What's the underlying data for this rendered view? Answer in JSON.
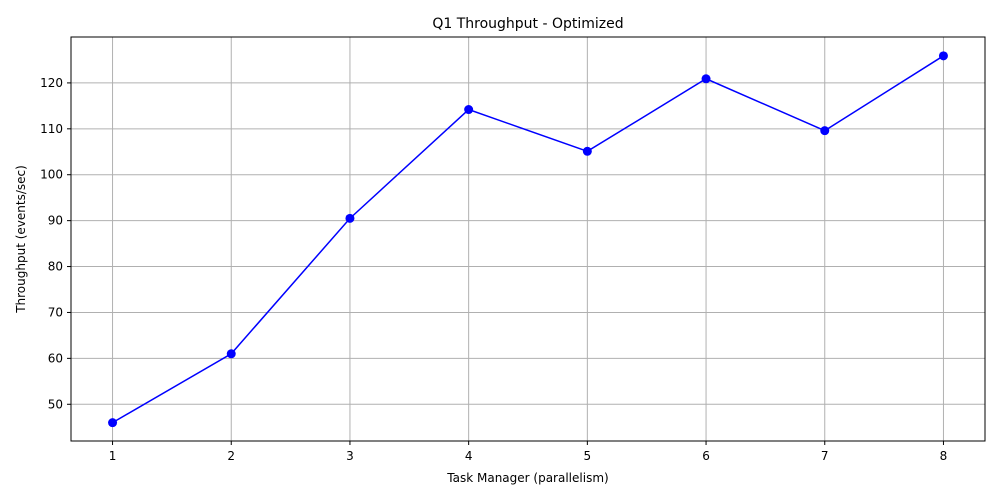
{
  "chart_data": {
    "type": "line",
    "title": "Q1 Throughput - Optimized",
    "xlabel": "Task Manager (parallelism)",
    "ylabel": "Throughput (events/sec)",
    "x": [
      1,
      2,
      3,
      4,
      5,
      6,
      7,
      8
    ],
    "series": [
      {
        "values": [
          46.0,
          61.0,
          90.5,
          114.2,
          105.1,
          120.9,
          109.6,
          125.9
        ],
        "color": "#0000ff",
        "marker": "circle"
      }
    ],
    "xticks": [
      "1",
      "2",
      "3",
      "4",
      "5",
      "6",
      "7",
      "8"
    ],
    "yticks": [
      "50",
      "60",
      "70",
      "80",
      "90",
      "100",
      "110",
      "120"
    ],
    "xlim": [
      0.65,
      8.35
    ],
    "ylim": [
      42.0,
      130.0
    ],
    "grid": true,
    "legend": "none"
  }
}
